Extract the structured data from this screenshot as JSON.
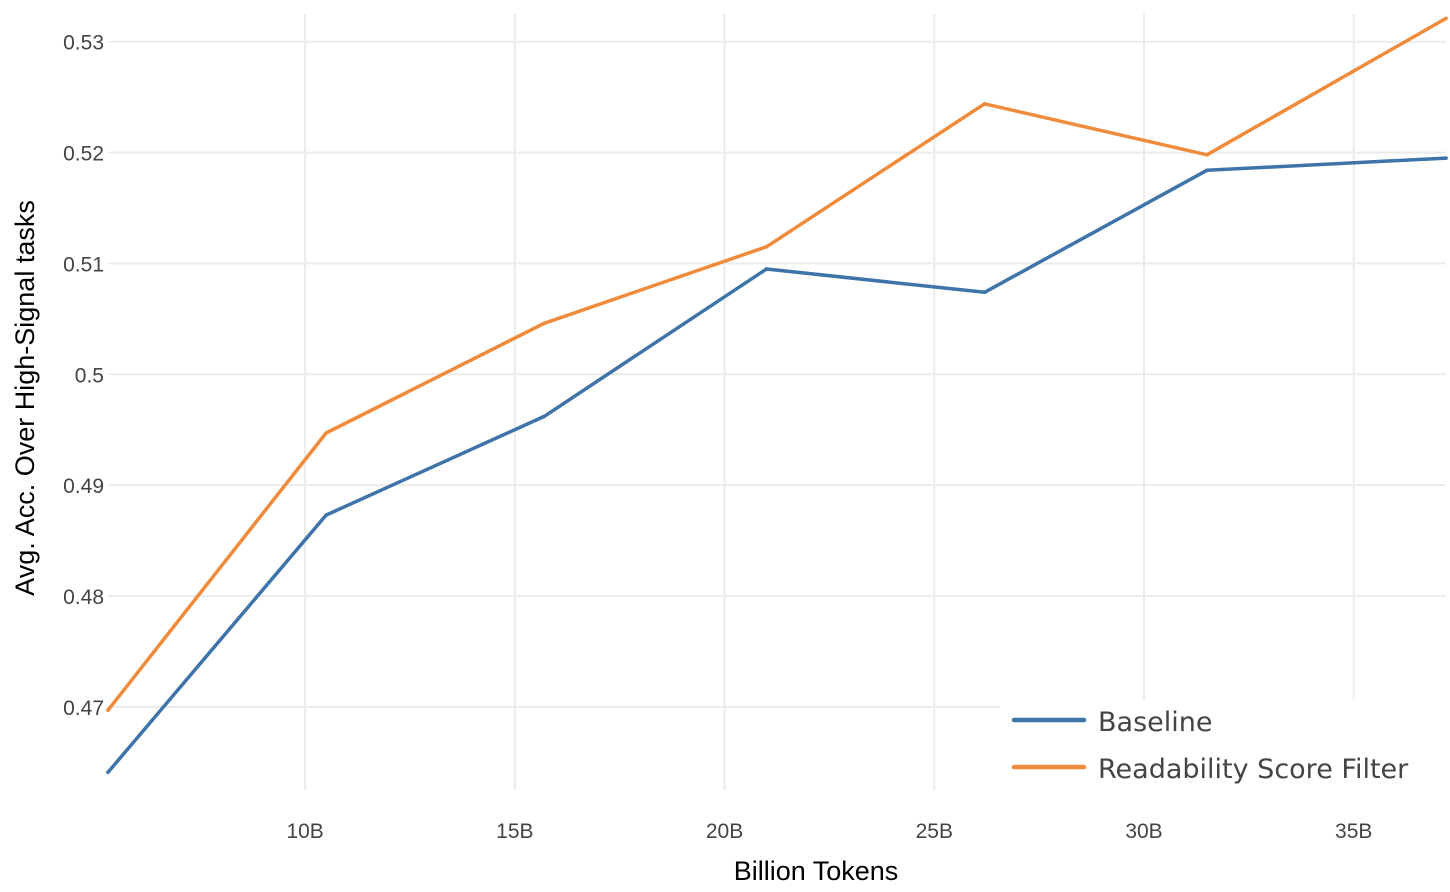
{
  "chart_data": {
    "type": "line",
    "xlabel": "Billion Tokens",
    "ylabel": "Avg. Acc. Over High-Signal tasks",
    "xlim": [
      5.3,
      37.2
    ],
    "ylim": [
      0.4625,
      0.5325
    ],
    "x_ticks": [
      10,
      15,
      20,
      25,
      30,
      35
    ],
    "x_tick_labels": [
      "10B",
      "15B",
      "20B",
      "25B",
      "30B",
      "35B"
    ],
    "y_ticks": [
      0.47,
      0.48,
      0.49,
      0.5,
      0.51,
      0.52,
      0.53
    ],
    "y_tick_labels": [
      "0.47",
      "0.48",
      "0.49",
      "0.5",
      "0.51",
      "0.52",
      "0.53"
    ],
    "grid": true,
    "legend_position": "bottom-right",
    "series": [
      {
        "name": "Baseline",
        "color": "#3e74aa",
        "x": [
          5.3,
          10.5,
          15.7,
          21.0,
          26.2,
          31.5,
          37.2
        ],
        "y": [
          0.4641,
          0.4873,
          0.4962,
          0.5095,
          0.5074,
          0.5184,
          0.5195
        ]
      },
      {
        "name": "Readability Score Filter",
        "color": "#ef8b3b",
        "x": [
          5.3,
          10.5,
          15.7,
          21.0,
          26.2,
          31.5,
          37.2
        ],
        "y": [
          0.4697,
          0.4947,
          0.5046,
          0.5115,
          0.5244,
          0.5198,
          0.5321
        ]
      }
    ]
  }
}
